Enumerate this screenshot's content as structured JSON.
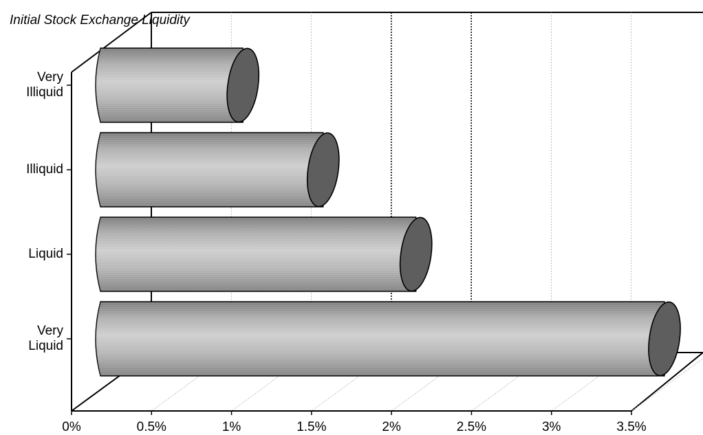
{
  "chart_data": {
    "type": "bar",
    "orientation": "horizontal",
    "style": "3d-cylinder",
    "title": "",
    "ylabel": "Initial Stock Exchange Liquidity",
    "xlabel": "",
    "categories": [
      "Very Illiquid",
      "Illiquid",
      "Liquid",
      "Very Liquid"
    ],
    "values": [
      0.95,
      1.46,
      2.05,
      3.63
    ],
    "xlim": [
      0,
      3.5
    ],
    "xtick_labels": [
      "0%",
      "0.5%",
      "1%",
      "1.5%",
      "2%",
      "2.5%",
      "3%",
      "3.5%"
    ],
    "grid": true,
    "legend": "none",
    "colors": {
      "bar_body": "#b4b4b4",
      "bar_cap": "#5e5e5e",
      "gridline": "#aaaaaa",
      "axis": "#000000"
    }
  }
}
